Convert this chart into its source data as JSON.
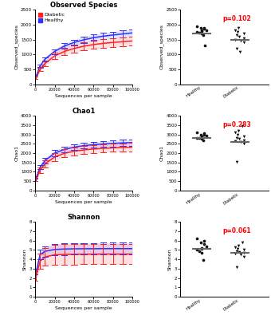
{
  "rarefaction": {
    "x": [
      1000,
      5000,
      10000,
      20000,
      30000,
      40000,
      50000,
      60000,
      70000,
      80000,
      90000,
      100000
    ],
    "obs_healthy_mean": [
      280,
      620,
      840,
      1100,
      1280,
      1400,
      1490,
      1560,
      1610,
      1650,
      1685,
      1720
    ],
    "obs_healthy_err": [
      25,
      45,
      60,
      80,
      90,
      95,
      100,
      105,
      108,
      110,
      112,
      115
    ],
    "obs_diabetic_mean": [
      220,
      500,
      700,
      950,
      1100,
      1200,
      1275,
      1330,
      1370,
      1400,
      1425,
      1450
    ],
    "obs_diabetic_err": [
      35,
      65,
      85,
      110,
      125,
      135,
      140,
      145,
      148,
      150,
      152,
      155
    ],
    "chao1_healthy_mean": [
      700,
      1250,
      1600,
      2000,
      2200,
      2320,
      2400,
      2450,
      2490,
      2520,
      2545,
      2565
    ],
    "chao1_healthy_err": [
      70,
      120,
      140,
      155,
      160,
      160,
      160,
      160,
      160,
      160,
      160,
      160
    ],
    "chao1_diabetic_mean": [
      580,
      1100,
      1420,
      1790,
      1990,
      2100,
      2170,
      2220,
      2255,
      2280,
      2300,
      2320
    ],
    "chao1_diabetic_err": [
      85,
      150,
      175,
      200,
      210,
      215,
      215,
      215,
      215,
      215,
      215,
      215
    ],
    "shannon_healthy_mean": [
      2.7,
      4.5,
      4.85,
      5.05,
      5.1,
      5.12,
      5.13,
      5.13,
      5.14,
      5.14,
      5.14,
      5.14
    ],
    "shannon_healthy_err": [
      0.3,
      0.5,
      0.55,
      0.6,
      0.62,
      0.63,
      0.63,
      0.63,
      0.63,
      0.63,
      0.63,
      0.63
    ],
    "shannon_diabetic_mean": [
      2.2,
      3.8,
      4.25,
      4.48,
      4.52,
      4.54,
      4.55,
      4.55,
      4.56,
      4.56,
      4.56,
      4.56
    ],
    "shannon_diabetic_err": [
      0.5,
      0.85,
      0.95,
      1.05,
      1.08,
      1.09,
      1.09,
      1.09,
      1.09,
      1.09,
      1.09,
      1.09
    ]
  },
  "scatter": {
    "obs_healthy_pts": [
      1950,
      1900,
      1880,
      1850,
      1820,
      1800,
      1780,
      1760,
      1740,
      1700,
      1650,
      1300
    ],
    "obs_diabetic_pts": [
      1900,
      1800,
      1750,
      1700,
      1650,
      1600,
      1550,
      1500,
      1450,
      1400,
      1200,
      1100
    ],
    "obs_healthy_mean": 1700,
    "obs_diabetic_mean": 1490,
    "chao1_healthy_pts": [
      3100,
      3050,
      3000,
      2980,
      2950,
      2900,
      2850,
      2820,
      2800,
      2750,
      2700
    ],
    "chao1_diabetic_pts": [
      3450,
      3200,
      3100,
      3000,
      2900,
      2800,
      2750,
      2700,
      2650,
      2600,
      2500,
      1550
    ],
    "chao1_healthy_mean": 2810,
    "chao1_diabetic_mean": 2590,
    "shannon_healthy_pts": [
      6.2,
      6.0,
      5.8,
      5.6,
      5.4,
      5.2,
      5.1,
      5.0,
      4.9,
      4.7,
      3.9
    ],
    "shannon_diabetic_pts": [
      5.8,
      5.5,
      5.3,
      5.1,
      5.0,
      4.9,
      4.8,
      4.7,
      4.6,
      4.5,
      4.3,
      3.2
    ],
    "shannon_healthy_mean": 5.15,
    "shannon_diabetic_mean": 4.7
  },
  "colors": {
    "healthy_line": "#3030FF",
    "diabetic_line": "#FF2020",
    "healthy_fill": "#9999FF",
    "diabetic_fill": "#FF9999",
    "dot": "#111111",
    "mean_line": "#666666",
    "p_value": "#FF0000"
  },
  "labels": {
    "obs_title": "Observed Species",
    "chao1_title": "Chao1",
    "shannon_title": "Shannon",
    "xlabel": "Sequences per sample",
    "obs_ylabel": "Observed_species",
    "chao1_ylabel": "Chao1",
    "shannon_ylabel": "Shannon",
    "healthy_label": "Healthy",
    "diabetic_label": "Diabetic",
    "legend_diabetic": "Diabetic",
    "legend_healthy": "Healthy",
    "obs_pval": "p=0.102",
    "chao1_pval": "p=0.283",
    "shannon_pval": "p=0.061"
  },
  "ylims": {
    "obs_rarefaction": [
      0,
      2500
    ],
    "chao1_rarefaction": [
      0,
      4000
    ],
    "shannon_rarefaction": [
      0,
      8
    ],
    "obs_scatter": [
      0,
      2500
    ],
    "chao1_scatter": [
      0,
      4000
    ],
    "shannon_scatter": [
      0,
      8
    ]
  }
}
